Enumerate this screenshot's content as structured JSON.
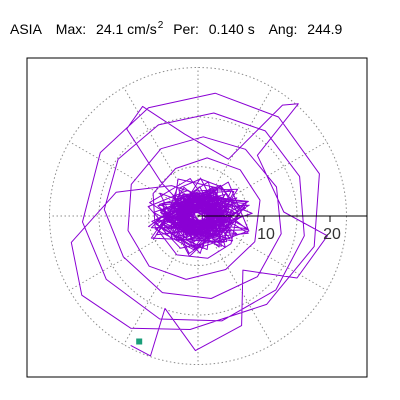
{
  "header": {
    "station": "ASIA",
    "max_label": "Max:",
    "max_value": "24.1",
    "max_unit": "cm/s",
    "max_unit_exp": "2",
    "per_label": "Per:",
    "per_value": "0.140 s",
    "ang_label": "Ang:",
    "ang_value": "244.9"
  },
  "chart_data": {
    "type": "line",
    "subtype": "polar hodogram (particle-motion trace)",
    "title": "ASIA  Max: 24.1 cm/s2  Per: 0.140 s  Ang: 244.9",
    "xlabel": "",
    "ylabel": "",
    "rlim": [
      0,
      24.1
    ],
    "radial_ticks": [
      10,
      20
    ],
    "radial_tick_labels": [
      "10",
      "20"
    ],
    "rings": [
      7.5,
      15,
      22.5
    ],
    "spokes_deg": [
      0,
      30,
      60,
      90,
      120,
      150,
      180,
      210,
      240,
      270,
      300,
      330
    ],
    "grid": true,
    "max_value": 24.1,
    "max_angle_deg": 244.9,
    "period_s": 0.14,
    "trace_color": "#8a00d4",
    "marker_color": "#1a9e79",
    "axis_color": "#000000",
    "grid_color": "#8c8c8c",
    "trace": {
      "note": "dense looping trace centred at origin; most motion within r<6, loops reaching about 18-20 in all directions",
      "points_xy": [
        [
          0.0,
          0.0
        ],
        [
          1.2,
          0.8
        ],
        [
          3.1,
          1.9
        ],
        [
          5.4,
          0.6
        ],
        [
          4.0,
          -2.2
        ],
        [
          0.9,
          -3.6
        ],
        [
          -2.6,
          -2.1
        ],
        [
          -4.4,
          0.9
        ],
        [
          -3.2,
          4.1
        ],
        [
          0.4,
          5.6
        ],
        [
          3.6,
          4.4
        ],
        [
          6.1,
          1.0
        ],
        [
          5.0,
          -4.2
        ],
        [
          1.5,
          -6.4
        ],
        [
          -3.2,
          -5.9
        ],
        [
          -6.5,
          -1.6
        ],
        [
          -6.8,
          3.4
        ],
        [
          -3.4,
          7.2
        ],
        [
          1.4,
          8.8
        ],
        [
          6.4,
          7.0
        ],
        [
          9.4,
          2.4
        ],
        [
          8.6,
          -3.9
        ],
        [
          4.2,
          -8.1
        ],
        [
          -1.8,
          -9.6
        ],
        [
          -7.4,
          -7.6
        ],
        [
          -10.6,
          -2.2
        ],
        [
          -10.1,
          4.8
        ],
        [
          -5.6,
          10.2
        ],
        [
          0.8,
          12.0
        ],
        [
          7.2,
          10.1
        ],
        [
          11.9,
          4.4
        ],
        [
          12.6,
          -2.7
        ],
        [
          9.0,
          -9.2
        ],
        [
          2.0,
          -12.5
        ],
        [
          -5.4,
          -11.6
        ],
        [
          -11.3,
          -6.2
        ],
        [
          -14.2,
          1.0
        ],
        [
          -12.1,
          8.6
        ],
        [
          -6.0,
          13.8
        ],
        [
          2.4,
          15.6
        ],
        [
          10.2,
          12.9
        ],
        [
          15.4,
          6.0
        ],
        [
          16.1,
          -3.0
        ],
        [
          11.8,
          -11.2
        ],
        [
          3.6,
          -15.9
        ],
        [
          -5.8,
          -15.6
        ],
        [
          -13.9,
          -9.6
        ],
        [
          -17.5,
          -0.9
        ],
        [
          -14.8,
          9.6
        ],
        [
          -7.5,
          16.4
        ],
        [
          2.6,
          18.6
        ],
        [
          12.2,
          15.0
        ],
        [
          18.4,
          6.4
        ],
        [
          17.6,
          -4.6
        ],
        [
          10.4,
          -13.4
        ],
        [
          -1.2,
          -17.2
        ],
        [
          -10.2,
          -17.0
        ],
        [
          -17.6,
          -12.0
        ],
        [
          -19.2,
          -4.0
        ],
        [
          -12.4,
          3.6
        ],
        [
          -4.0,
          4.6
        ],
        [
          2.2,
          2.6
        ],
        [
          4.8,
          -1.0
        ],
        [
          2.0,
          -3.0
        ],
        [
          -1.6,
          -1.8
        ],
        [
          -2.6,
          1.6
        ],
        [
          0.6,
          3.2
        ],
        [
          3.0,
          1.0
        ],
        [
          1.0,
          -1.4
        ],
        [
          -1.0,
          0.2
        ],
        [
          -5.5,
          5.0
        ],
        [
          -10.8,
          13.2
        ],
        [
          -8.4,
          16.6
        ],
        [
          -2.0,
          12.4
        ],
        [
          4.6,
          8.6
        ],
        [
          12.8,
          16.8
        ],
        [
          15.2,
          17.0
        ],
        [
          9.0,
          9.2
        ],
        [
          13.0,
          0.6
        ],
        [
          19.6,
          -3.0
        ],
        [
          15.0,
          -9.4
        ],
        [
          6.8,
          -8.2
        ],
        [
          6.6,
          -16.6
        ],
        [
          -0.4,
          -20.4
        ],
        [
          -5.0,
          -14.0
        ],
        [
          -7.2,
          -21.2
        ],
        [
          -10.2,
          -19.6
        ]
      ]
    },
    "end_marker": {
      "shape": "square",
      "angle_deg": 244.9,
      "r": 21.0
    }
  }
}
